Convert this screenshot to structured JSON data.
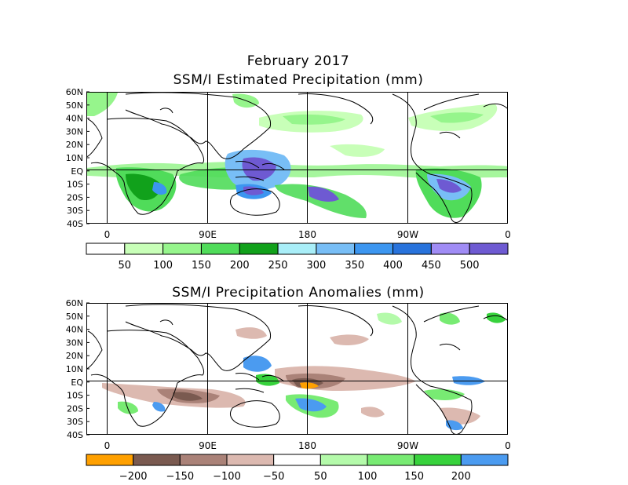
{
  "month_title": "February 2017",
  "map1": {
    "title": "SSM/I Estimated Precipitation (mm)",
    "lat_labels": [
      "60N",
      "50N",
      "40N",
      "30N",
      "20N",
      "10N",
      "EQ",
      "10S",
      "20S",
      "30S",
      "40S"
    ],
    "lon_labels": [
      "0",
      "90E",
      "180",
      "90W",
      "0"
    ],
    "colorbar": {
      "colors": [
        "#ffffff",
        "#c8ffb8",
        "#96f58c",
        "#50dc5a",
        "#11a11b",
        "#a9eef8",
        "#78bef6",
        "#3c96f0",
        "#2873dc",
        "#a08cf5",
        "#6e5ad2"
      ],
      "labels": [
        "50",
        "100",
        "150",
        "200",
        "250",
        "300",
        "350",
        "400",
        "450",
        "500"
      ]
    }
  },
  "map2": {
    "title": "SSM/I Precipitation Anomalies (mm)",
    "lat_labels": [
      "60N",
      "50N",
      "40N",
      "30N",
      "20N",
      "10N",
      "EQ",
      "10S",
      "20S",
      "30S",
      "40S"
    ],
    "lon_labels": [
      "0",
      "90E",
      "180",
      "90W",
      "0"
    ],
    "colorbar": {
      "colors": [
        "#ffa000",
        "#7a5a50",
        "#aa8278",
        "#dcb9b0",
        "#ffffff",
        "#b4faaa",
        "#78eb73",
        "#37d23c",
        "#4b9bf0"
      ],
      "labels": [
        "−200",
        "−150",
        "−100",
        "−50",
        "50",
        "100",
        "150",
        "200"
      ]
    }
  }
}
